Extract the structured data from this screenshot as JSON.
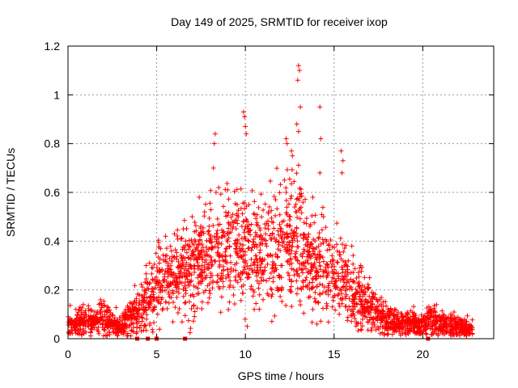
{
  "chart_data": {
    "type": "scatter",
    "title": "Day 149 of 2025, SRMTID for receiver ixop",
    "xlabel": "GPS time / hours",
    "ylabel": "SRMTID / TECUs",
    "xlim": [
      0,
      24
    ],
    "ylim": [
      0,
      1.2
    ],
    "x_ticks": [
      0,
      5,
      10,
      15,
      20
    ],
    "x_tick_labels": [
      "0",
      "5",
      "10",
      "15",
      "20"
    ],
    "y_ticks": [
      0,
      0.2,
      0.4,
      0.6,
      0.8,
      1,
      1.2
    ],
    "y_tick_labels": [
      "0",
      "0.2",
      "0.4",
      "0.6",
      "0.8",
      "1",
      "1.2"
    ],
    "grid": true,
    "series": [
      {
        "name": "SRMTID",
        "marker": "plus",
        "color": "#ff0000",
        "envelope_note": "dense point cloud; values summarized as [hour, median, spread] envelope",
        "envelope": [
          [
            0.0,
            0.06,
            0.04
          ],
          [
            0.5,
            0.07,
            0.05
          ],
          [
            1.0,
            0.07,
            0.05
          ],
          [
            1.5,
            0.07,
            0.04
          ],
          [
            2.0,
            0.09,
            0.07
          ],
          [
            2.5,
            0.06,
            0.04
          ],
          [
            3.0,
            0.06,
            0.04
          ],
          [
            3.5,
            0.07,
            0.05
          ],
          [
            4.0,
            0.12,
            0.08
          ],
          [
            4.5,
            0.17,
            0.1
          ],
          [
            5.0,
            0.22,
            0.12
          ],
          [
            5.5,
            0.24,
            0.12
          ],
          [
            6.0,
            0.26,
            0.13
          ],
          [
            6.5,
            0.28,
            0.15
          ],
          [
            7.0,
            0.3,
            0.15
          ],
          [
            7.5,
            0.33,
            0.16
          ],
          [
            8.0,
            0.35,
            0.18
          ],
          [
            8.5,
            0.36,
            0.18
          ],
          [
            9.0,
            0.37,
            0.18
          ],
          [
            9.5,
            0.37,
            0.18
          ],
          [
            10.0,
            0.36,
            0.2
          ],
          [
            10.5,
            0.34,
            0.17
          ],
          [
            11.0,
            0.36,
            0.18
          ],
          [
            11.5,
            0.38,
            0.2
          ],
          [
            12.0,
            0.38,
            0.2
          ],
          [
            12.5,
            0.4,
            0.22
          ],
          [
            13.0,
            0.4,
            0.22
          ],
          [
            13.5,
            0.34,
            0.18
          ],
          [
            14.0,
            0.3,
            0.16
          ],
          [
            14.5,
            0.28,
            0.15
          ],
          [
            15.0,
            0.25,
            0.14
          ],
          [
            15.5,
            0.24,
            0.14
          ],
          [
            16.0,
            0.18,
            0.12
          ],
          [
            16.5,
            0.15,
            0.1
          ],
          [
            17.0,
            0.12,
            0.08
          ],
          [
            17.5,
            0.1,
            0.07
          ],
          [
            18.0,
            0.07,
            0.05
          ],
          [
            18.5,
            0.06,
            0.04
          ],
          [
            19.0,
            0.06,
            0.04
          ],
          [
            19.5,
            0.06,
            0.04
          ],
          [
            20.0,
            0.06,
            0.04
          ],
          [
            20.5,
            0.08,
            0.06
          ],
          [
            21.0,
            0.06,
            0.04
          ],
          [
            21.5,
            0.05,
            0.04
          ],
          [
            22.0,
            0.05,
            0.04
          ],
          [
            22.5,
            0.04,
            0.03
          ],
          [
            22.8,
            0.04,
            0.03
          ]
        ],
        "outliers": [
          [
            13.0,
            1.12
          ],
          [
            13.05,
            1.1
          ],
          [
            12.95,
            1.06
          ],
          [
            13.1,
            0.95
          ],
          [
            14.2,
            0.95
          ],
          [
            14.25,
            0.82
          ],
          [
            9.9,
            0.93
          ],
          [
            9.95,
            0.91
          ],
          [
            10.0,
            0.87
          ],
          [
            10.05,
            0.84
          ],
          [
            8.3,
            0.84
          ],
          [
            8.25,
            0.8
          ],
          [
            8.2,
            0.7
          ],
          [
            8.5,
            0.62
          ],
          [
            9.0,
            0.61
          ],
          [
            12.3,
            0.82
          ],
          [
            12.35,
            0.8
          ],
          [
            12.6,
            0.77
          ],
          [
            12.65,
            0.75
          ],
          [
            12.9,
            0.88
          ],
          [
            13.0,
            0.85
          ],
          [
            15.4,
            0.77
          ],
          [
            15.5,
            0.73
          ],
          [
            15.45,
            0.68
          ],
          [
            14.2,
            0.68
          ],
          [
            12.2,
            0.65
          ],
          [
            12.3,
            0.6
          ],
          [
            11.7,
            0.57
          ],
          [
            11.3,
            0.52
          ],
          [
            7.7,
            0.52
          ],
          [
            7.4,
            0.58
          ],
          [
            9.6,
            0.5
          ],
          [
            10.2,
            0.55
          ],
          [
            13.8,
            0.58
          ],
          [
            14.4,
            0.5
          ],
          [
            11.0,
            0.16
          ],
          [
            10.8,
            0.18
          ],
          [
            10.5,
            0.12
          ],
          [
            9.1,
            0.15
          ],
          [
            13.8,
            0.12
          ],
          [
            14.1,
            0.15
          ],
          [
            4.4,
            0.3
          ],
          [
            4.6,
            0.31
          ],
          [
            5.5,
            0.42
          ],
          [
            6.0,
            0.43
          ],
          [
            6.5,
            0.45
          ],
          [
            7.0,
            0.5
          ],
          [
            16.0,
            0.38
          ],
          [
            16.5,
            0.3
          ],
          [
            17.0,
            0.25
          ]
        ]
      },
      {
        "name": "Data gaps",
        "marker": "square",
        "color": "#ff0000",
        "x": [
          3.9,
          4.5,
          5.0,
          6.6,
          20.3
        ],
        "y": [
          0,
          0,
          0,
          0,
          0
        ]
      }
    ]
  }
}
